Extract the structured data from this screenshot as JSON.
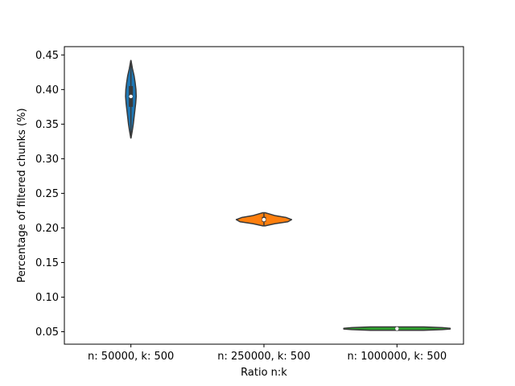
{
  "chart_data": {
    "type": "violin",
    "title": "",
    "xlabel": "Ratio n:k",
    "ylabel": "Percentage of filtered chunks (%)",
    "categories": [
      "n: 50000, k: 500",
      "n: 250000, k: 500",
      "n: 1000000, k: 500"
    ],
    "ylim": [
      0.032,
      0.462
    ],
    "yticks": [
      0.05,
      0.1,
      0.15,
      0.2,
      0.25,
      0.3,
      0.35,
      0.4,
      0.45
    ],
    "ytick_labels": [
      "0.05",
      "0.10",
      "0.15",
      "0.20",
      "0.25",
      "0.30",
      "0.35",
      "0.40",
      "0.45"
    ],
    "grid": false,
    "series": [
      {
        "category": "n: 50000, k: 500",
        "color": "#1f77b4",
        "median": 0.39,
        "q1": 0.375,
        "q3": 0.405,
        "min": 0.33,
        "max": 0.442,
        "profile": [
          [
            0.33,
            0.002
          ],
          [
            0.34,
            0.025
          ],
          [
            0.35,
            0.045
          ],
          [
            0.36,
            0.06
          ],
          [
            0.37,
            0.075
          ],
          [
            0.38,
            0.09
          ],
          [
            0.39,
            0.1
          ],
          [
            0.4,
            0.095
          ],
          [
            0.41,
            0.08
          ],
          [
            0.42,
            0.06
          ],
          [
            0.43,
            0.03
          ],
          [
            0.442,
            0.002
          ]
        ]
      },
      {
        "category": "n: 250000, k: 500",
        "color": "#ff7f0e",
        "median": 0.212,
        "q1": 0.209,
        "q3": 0.216,
        "min": 0.203,
        "max": 0.222,
        "profile": [
          [
            0.203,
            0.02
          ],
          [
            0.206,
            0.2
          ],
          [
            0.209,
            0.45
          ],
          [
            0.212,
            0.52
          ],
          [
            0.215,
            0.42
          ],
          [
            0.218,
            0.2
          ],
          [
            0.222,
            0.02
          ]
        ]
      },
      {
        "category": "n: 1000000, k: 500",
        "color": "#2ca02c",
        "median": 0.0545,
        "q1": 0.0535,
        "q3": 0.0555,
        "min": 0.052,
        "max": 0.057,
        "profile": [
          [
            0.052,
            0.5
          ],
          [
            0.053,
            0.85
          ],
          [
            0.054,
            1.0
          ],
          [
            0.055,
            1.0
          ],
          [
            0.056,
            0.85
          ],
          [
            0.057,
            0.5
          ]
        ]
      }
    ]
  }
}
